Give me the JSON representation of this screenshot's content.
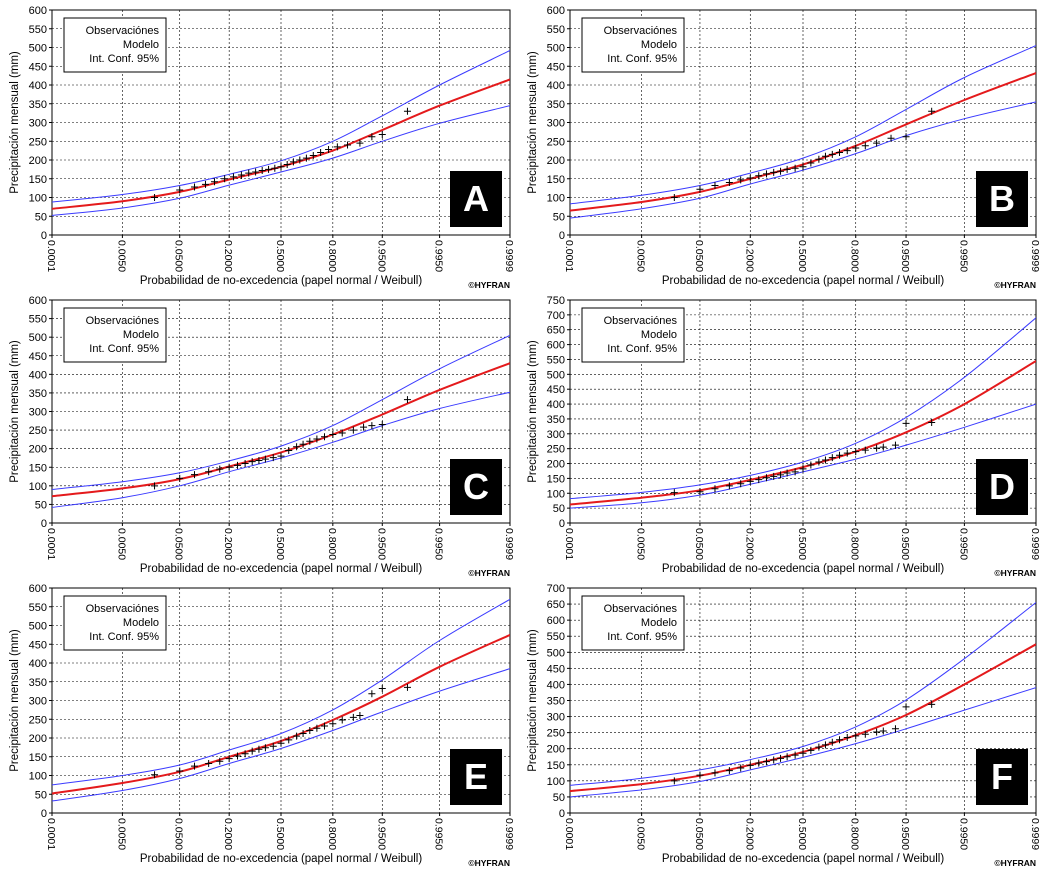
{
  "common": {
    "ylabel": "Precipitación mensual (mm)",
    "xlabel": "Probabilidad de no-excedencia (papel normal / Weibull)",
    "credit": "©HYFRAN",
    "legend": [
      "Observaciónes",
      "Modelo",
      "Int. Conf. 95%"
    ],
    "x_ticks": [
      "0.0001",
      "0.0050",
      "0.0500",
      "0.2000",
      "0.5000",
      "0.8000",
      "0.9500",
      "0.9950",
      "0.9999"
    ],
    "colors": {
      "model": "#e41a1c",
      "confidence": "#3b3bff",
      "observations": "#000000",
      "grid": "#000000",
      "label_box": "#000000"
    }
  },
  "chart_data": [
    {
      "type": "line",
      "label": "A",
      "ylim": [
        0,
        600
      ],
      "model": [
        [
          0.0001,
          70
        ],
        [
          0.005,
          90
        ],
        [
          0.05,
          115
        ],
        [
          0.2,
          148
        ],
        [
          0.5,
          182
        ],
        [
          0.8,
          225
        ],
        [
          0.95,
          280
        ],
        [
          0.995,
          345
        ],
        [
          0.9999,
          415
        ]
      ],
      "ci_upper": [
        [
          0.0001,
          88
        ],
        [
          0.005,
          108
        ],
        [
          0.05,
          132
        ],
        [
          0.2,
          162
        ],
        [
          0.5,
          198
        ],
        [
          0.8,
          250
        ],
        [
          0.95,
          318
        ],
        [
          0.995,
          400
        ],
        [
          0.9999,
          492
        ]
      ],
      "ci_lower": [
        [
          0.0001,
          52
        ],
        [
          0.005,
          72
        ],
        [
          0.05,
          98
        ],
        [
          0.2,
          133
        ],
        [
          0.5,
          168
        ],
        [
          0.8,
          205
        ],
        [
          0.95,
          250
        ],
        [
          0.995,
          298
        ],
        [
          0.9999,
          345
        ]
      ],
      "observations": [
        [
          0.02,
          100
        ],
        [
          0.05,
          120
        ],
        [
          0.08,
          128
        ],
        [
          0.11,
          135
        ],
        [
          0.14,
          142
        ],
        [
          0.18,
          150
        ],
        [
          0.22,
          155
        ],
        [
          0.26,
          160
        ],
        [
          0.3,
          165
        ],
        [
          0.34,
          168
        ],
        [
          0.38,
          172
        ],
        [
          0.42,
          175
        ],
        [
          0.46,
          178
        ],
        [
          0.5,
          182
        ],
        [
          0.54,
          188
        ],
        [
          0.58,
          195
        ],
        [
          0.62,
          200
        ],
        [
          0.66,
          205
        ],
        [
          0.7,
          212
        ],
        [
          0.74,
          220
        ],
        [
          0.78,
          228
        ],
        [
          0.82,
          235
        ],
        [
          0.86,
          240
        ],
        [
          0.9,
          245
        ],
        [
          0.93,
          262
        ],
        [
          0.95,
          268
        ],
        [
          0.98,
          330
        ]
      ]
    },
    {
      "type": "line",
      "label": "B",
      "ylim": [
        0,
        600
      ],
      "model": [
        [
          0.0001,
          65
        ],
        [
          0.005,
          88
        ],
        [
          0.05,
          115
        ],
        [
          0.2,
          150
        ],
        [
          0.5,
          188
        ],
        [
          0.8,
          238
        ],
        [
          0.95,
          295
        ],
        [
          0.995,
          360
        ],
        [
          0.9999,
          432
        ]
      ],
      "ci_upper": [
        [
          0.0001,
          83
        ],
        [
          0.005,
          106
        ],
        [
          0.05,
          132
        ],
        [
          0.2,
          165
        ],
        [
          0.5,
          205
        ],
        [
          0.8,
          262
        ],
        [
          0.95,
          335
        ],
        [
          0.995,
          420
        ],
        [
          0.9999,
          505
        ]
      ],
      "ci_lower": [
        [
          0.0001,
          45
        ],
        [
          0.005,
          70
        ],
        [
          0.05,
          98
        ],
        [
          0.2,
          136
        ],
        [
          0.5,
          173
        ],
        [
          0.8,
          217
        ],
        [
          0.95,
          265
        ],
        [
          0.995,
          310
        ],
        [
          0.9999,
          355
        ]
      ],
      "observations": [
        [
          0.02,
          100
        ],
        [
          0.05,
          122
        ],
        [
          0.08,
          132
        ],
        [
          0.12,
          140
        ],
        [
          0.16,
          147
        ],
        [
          0.2,
          152
        ],
        [
          0.24,
          158
        ],
        [
          0.28,
          163
        ],
        [
          0.32,
          167
        ],
        [
          0.36,
          170
        ],
        [
          0.4,
          175
        ],
        [
          0.45,
          178
        ],
        [
          0.5,
          182
        ],
        [
          0.55,
          192
        ],
        [
          0.6,
          202
        ],
        [
          0.64,
          210
        ],
        [
          0.68,
          215
        ],
        [
          0.72,
          220
        ],
        [
          0.76,
          225
        ],
        [
          0.8,
          232
        ],
        [
          0.84,
          238
        ],
        [
          0.88,
          245
        ],
        [
          0.92,
          258
        ],
        [
          0.95,
          262
        ],
        [
          0.98,
          330
        ]
      ]
    },
    {
      "type": "line",
      "label": "C",
      "ylim": [
        0,
        600
      ],
      "model": [
        [
          0.0001,
          72
        ],
        [
          0.005,
          93
        ],
        [
          0.05,
          118
        ],
        [
          0.2,
          152
        ],
        [
          0.5,
          190
        ],
        [
          0.8,
          238
        ],
        [
          0.95,
          292
        ],
        [
          0.995,
          358
        ],
        [
          0.9999,
          430
        ]
      ],
      "ci_upper": [
        [
          0.0001,
          90
        ],
        [
          0.005,
          111
        ],
        [
          0.05,
          135
        ],
        [
          0.2,
          167
        ],
        [
          0.5,
          207
        ],
        [
          0.8,
          262
        ],
        [
          0.95,
          332
        ],
        [
          0.995,
          415
        ],
        [
          0.9999,
          505
        ]
      ],
      "ci_lower": [
        [
          0.0001,
          42
        ],
        [
          0.005,
          68
        ],
        [
          0.05,
          100
        ],
        [
          0.2,
          138
        ],
        [
          0.5,
          175
        ],
        [
          0.8,
          217
        ],
        [
          0.95,
          262
        ],
        [
          0.995,
          308
        ],
        [
          0.9999,
          352
        ]
      ],
      "observations": [
        [
          0.02,
          100
        ],
        [
          0.05,
          120
        ],
        [
          0.08,
          130
        ],
        [
          0.12,
          138
        ],
        [
          0.16,
          145
        ],
        [
          0.2,
          150
        ],
        [
          0.24,
          155
        ],
        [
          0.28,
          160
        ],
        [
          0.32,
          165
        ],
        [
          0.36,
          168
        ],
        [
          0.4,
          172
        ],
        [
          0.45,
          176
        ],
        [
          0.5,
          180
        ],
        [
          0.55,
          195
        ],
        [
          0.6,
          205
        ],
        [
          0.64,
          212
        ],
        [
          0.68,
          220
        ],
        [
          0.72,
          226
        ],
        [
          0.76,
          232
        ],
        [
          0.8,
          238
        ],
        [
          0.84,
          242
        ],
        [
          0.88,
          250
        ],
        [
          0.91,
          258
        ],
        [
          0.93,
          262
        ],
        [
          0.95,
          265
        ],
        [
          0.98,
          332
        ]
      ]
    },
    {
      "type": "line",
      "label": "D",
      "ylim": [
        0,
        750
      ],
      "model": [
        [
          0.0001,
          62
        ],
        [
          0.005,
          85
        ],
        [
          0.05,
          110
        ],
        [
          0.2,
          145
        ],
        [
          0.5,
          188
        ],
        [
          0.8,
          240
        ],
        [
          0.95,
          305
        ],
        [
          0.995,
          400
        ],
        [
          0.9999,
          545
        ]
      ],
      "ci_upper": [
        [
          0.0001,
          82
        ],
        [
          0.005,
          103
        ],
        [
          0.05,
          128
        ],
        [
          0.2,
          160
        ],
        [
          0.5,
          205
        ],
        [
          0.8,
          268
        ],
        [
          0.95,
          355
        ],
        [
          0.995,
          490
        ],
        [
          0.9999,
          690
        ]
      ],
      "ci_lower": [
        [
          0.0001,
          50
        ],
        [
          0.005,
          68
        ],
        [
          0.05,
          94
        ],
        [
          0.2,
          130
        ],
        [
          0.5,
          172
        ],
        [
          0.8,
          215
        ],
        [
          0.95,
          262
        ],
        [
          0.995,
          322
        ],
        [
          0.9999,
          400
        ]
      ],
      "observations": [
        [
          0.02,
          102
        ],
        [
          0.05,
          105
        ],
        [
          0.08,
          115
        ],
        [
          0.12,
          125
        ],
        [
          0.16,
          132
        ],
        [
          0.2,
          140
        ],
        [
          0.24,
          146
        ],
        [
          0.28,
          152
        ],
        [
          0.32,
          157
        ],
        [
          0.36,
          162
        ],
        [
          0.4,
          168
        ],
        [
          0.45,
          172
        ],
        [
          0.5,
          182
        ],
        [
          0.55,
          195
        ],
        [
          0.6,
          205
        ],
        [
          0.64,
          212
        ],
        [
          0.68,
          220
        ],
        [
          0.72,
          228
        ],
        [
          0.76,
          235
        ],
        [
          0.8,
          240
        ],
        [
          0.84,
          245
        ],
        [
          0.88,
          252
        ],
        [
          0.9,
          255
        ],
        [
          0.93,
          262
        ],
        [
          0.95,
          335
        ],
        [
          0.98,
          338
        ]
      ]
    },
    {
      "type": "line",
      "label": "E",
      "ylim": [
        0,
        600
      ],
      "model": [
        [
          0.0001,
          52
        ],
        [
          0.005,
          80
        ],
        [
          0.05,
          110
        ],
        [
          0.2,
          150
        ],
        [
          0.5,
          192
        ],
        [
          0.8,
          248
        ],
        [
          0.95,
          310
        ],
        [
          0.995,
          390
        ],
        [
          0.9999,
          475
        ]
      ],
      "ci_upper": [
        [
          0.0001,
          75
        ],
        [
          0.005,
          100
        ],
        [
          0.05,
          128
        ],
        [
          0.2,
          168
        ],
        [
          0.5,
          212
        ],
        [
          0.8,
          275
        ],
        [
          0.95,
          355
        ],
        [
          0.995,
          460
        ],
        [
          0.9999,
          570
        ]
      ],
      "ci_lower": [
        [
          0.0001,
          32
        ],
        [
          0.005,
          60
        ],
        [
          0.05,
          92
        ],
        [
          0.2,
          132
        ],
        [
          0.5,
          172
        ],
        [
          0.8,
          220
        ],
        [
          0.95,
          270
        ],
        [
          0.995,
          325
        ],
        [
          0.9999,
          385
        ]
      ],
      "observations": [
        [
          0.02,
          102
        ],
        [
          0.05,
          112
        ],
        [
          0.08,
          125
        ],
        [
          0.12,
          132
        ],
        [
          0.16,
          138
        ],
        [
          0.2,
          145
        ],
        [
          0.24,
          152
        ],
        [
          0.28,
          158
        ],
        [
          0.32,
          165
        ],
        [
          0.36,
          170
        ],
        [
          0.4,
          174
        ],
        [
          0.45,
          178
        ],
        [
          0.5,
          186
        ],
        [
          0.55,
          195
        ],
        [
          0.6,
          205
        ],
        [
          0.64,
          212
        ],
        [
          0.68,
          220
        ],
        [
          0.72,
          226
        ],
        [
          0.76,
          232
        ],
        [
          0.8,
          238
        ],
        [
          0.84,
          248
        ],
        [
          0.88,
          255
        ],
        [
          0.9,
          260
        ],
        [
          0.93,
          318
        ],
        [
          0.95,
          332
        ],
        [
          0.98,
          335
        ]
      ]
    },
    {
      "type": "line",
      "label": "F",
      "ylim": [
        0,
        700
      ],
      "model": [
        [
          0.0001,
          68
        ],
        [
          0.005,
          90
        ],
        [
          0.05,
          116
        ],
        [
          0.2,
          150
        ],
        [
          0.5,
          190
        ],
        [
          0.8,
          242
        ],
        [
          0.95,
          305
        ],
        [
          0.995,
          400
        ],
        [
          0.9999,
          525
        ]
      ],
      "ci_upper": [
        [
          0.0001,
          86
        ],
        [
          0.005,
          108
        ],
        [
          0.05,
          134
        ],
        [
          0.2,
          166
        ],
        [
          0.5,
          207
        ],
        [
          0.8,
          268
        ],
        [
          0.95,
          352
        ],
        [
          0.995,
          480
        ],
        [
          0.9999,
          655
        ]
      ],
      "ci_lower": [
        [
          0.0001,
          50
        ],
        [
          0.005,
          72
        ],
        [
          0.05,
          98
        ],
        [
          0.2,
          134
        ],
        [
          0.5,
          173
        ],
        [
          0.8,
          216
        ],
        [
          0.95,
          262
        ],
        [
          0.995,
          320
        ],
        [
          0.9999,
          390
        ]
      ],
      "observations": [
        [
          0.02,
          100
        ],
        [
          0.05,
          118
        ],
        [
          0.08,
          125
        ],
        [
          0.12,
          132
        ],
        [
          0.16,
          140
        ],
        [
          0.2,
          148
        ],
        [
          0.24,
          155
        ],
        [
          0.28,
          160
        ],
        [
          0.32,
          165
        ],
        [
          0.36,
          170
        ],
        [
          0.4,
          175
        ],
        [
          0.45,
          180
        ],
        [
          0.5,
          186
        ],
        [
          0.55,
          195
        ],
        [
          0.6,
          205
        ],
        [
          0.64,
          212
        ],
        [
          0.68,
          220
        ],
        [
          0.72,
          228
        ],
        [
          0.76,
          235
        ],
        [
          0.8,
          240
        ],
        [
          0.84,
          245
        ],
        [
          0.88,
          252
        ],
        [
          0.9,
          255
        ],
        [
          0.93,
          262
        ],
        [
          0.95,
          330
        ],
        [
          0.98,
          338
        ]
      ]
    }
  ]
}
